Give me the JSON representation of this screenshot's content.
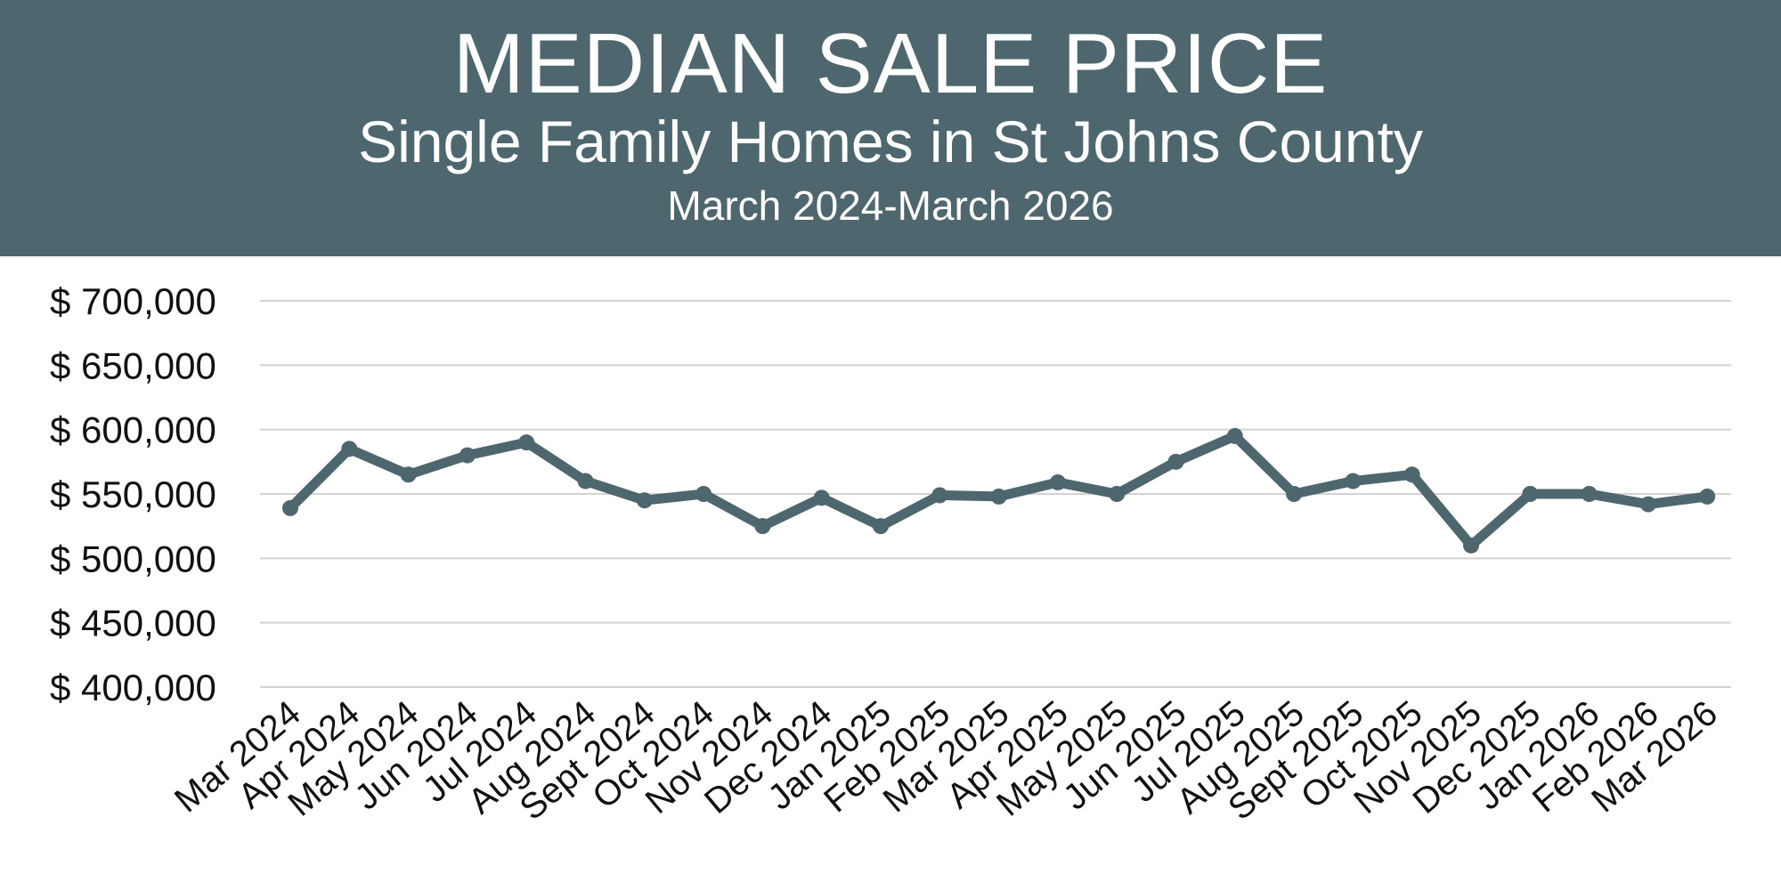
{
  "chart_data": {
    "type": "line",
    "title": "MEDIAN SALE PRICE",
    "subtitle": "Single Family Homes in St Johns County",
    "date_range": "March 2024-March 2026",
    "xlabel": "",
    "ylabel": "",
    "ylim": [
      400000,
      700000
    ],
    "yticks": [
      400000,
      450000,
      500000,
      550000,
      600000,
      650000,
      700000
    ],
    "ytick_labels": [
      "$ 400,000",
      "$ 450,000",
      "$ 500,000",
      "$ 550,000",
      "$ 600,000",
      "$ 650,000",
      "$ 700,000"
    ],
    "grid": true,
    "legend": "none",
    "categories": [
      "Mar 2024",
      "Apr 2024",
      "May 2024",
      "Jun 2024",
      "Jul 2024",
      "Aug 2024",
      "Sept 2024",
      "Oct 2024",
      "Nov 2024",
      "Dec 2024",
      "Jan 2025",
      "Feb 2025",
      "Mar 2025",
      "Apr 2025",
      "May 2025",
      "Jun 2025",
      "Jul 2025",
      "Aug 2025",
      "Sept 2025",
      "Oct 2025",
      "Nov 2025",
      "Dec 2025",
      "Jan 2026",
      "Feb 2026",
      "Mar 2026"
    ],
    "series": [
      {
        "name": "Median Sale Price",
        "color": "#4e666d",
        "values": [
          539000,
          585000,
          565000,
          580000,
          590000,
          560000,
          545000,
          550000,
          525000,
          547000,
          525000,
          549000,
          548000,
          559000,
          550000,
          575000,
          595000,
          550000,
          560000,
          565000,
          510000,
          550000,
          550000,
          542000,
          548000
        ]
      }
    ]
  },
  "colors": {
    "header_bg": "#4e666d",
    "header_text": "#ffffff",
    "line": "#4e666d",
    "grid": "#d2d2d2"
  }
}
